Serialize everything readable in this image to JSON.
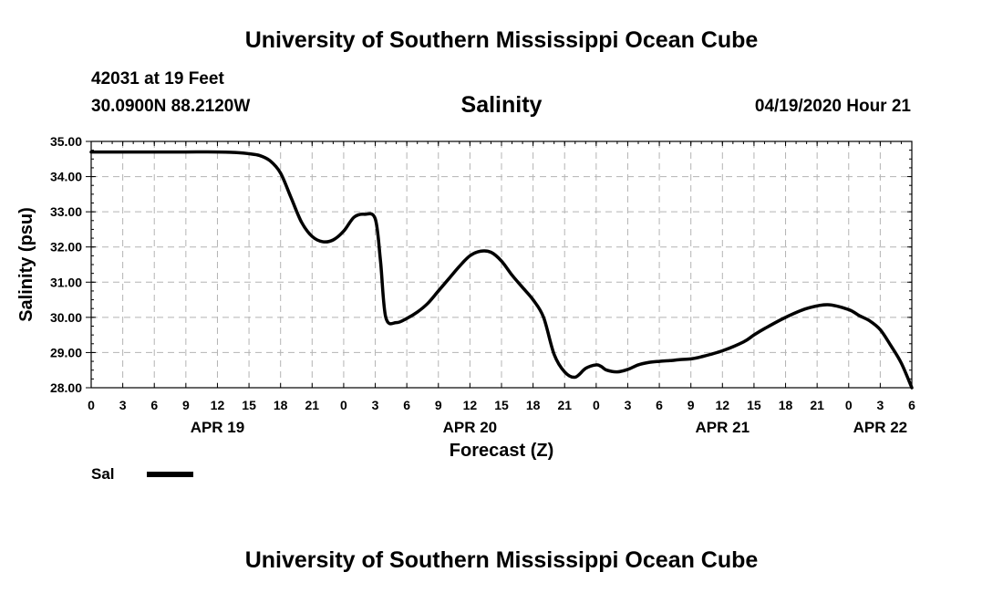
{
  "header": {
    "title": "University of Southern Mississippi Ocean Cube",
    "station": "42031 at 19 Feet",
    "coords": "30.0900N 88.2120W",
    "subtitle": "Salinity",
    "datetime": "04/19/2020 Hour 21"
  },
  "footer": {
    "title": "University of Southern Mississippi Ocean Cube"
  },
  "chart_data": {
    "type": "line",
    "title": "Salinity",
    "xlabel": "Forecast (Z)",
    "ylabel": "Salinity (psu)",
    "xlim": [
      0,
      78
    ],
    "ylim": [
      28.0,
      35.0
    ],
    "grid": true,
    "x_ticks": [
      0,
      3,
      6,
      9,
      12,
      15,
      18,
      21,
      24,
      27,
      30,
      33,
      36,
      39,
      42,
      45,
      48,
      51,
      54,
      57,
      60,
      63,
      66,
      69,
      72,
      75,
      78
    ],
    "x_tick_labels": [
      "0",
      "3",
      "6",
      "9",
      "12",
      "15",
      "18",
      "21",
      "0",
      "3",
      "6",
      "9",
      "12",
      "15",
      "18",
      "21",
      "0",
      "3",
      "6",
      "9",
      "12",
      "15",
      "18",
      "21",
      "0",
      "3",
      "6"
    ],
    "y_ticks": [
      28.0,
      29.0,
      30.0,
      31.0,
      32.0,
      33.0,
      34.0,
      35.0
    ],
    "y_tick_labels": [
      "28.00",
      "29.00",
      "30.00",
      "31.00",
      "32.00",
      "33.00",
      "34.00",
      "35.00"
    ],
    "day_labels": [
      {
        "x": 12,
        "label": "APR 19"
      },
      {
        "x": 36,
        "label": "APR 20"
      },
      {
        "x": 60,
        "label": "APR 21"
      },
      {
        "x": 75,
        "label": "APR 22"
      }
    ],
    "legend": {
      "position": "bottom-left",
      "label": "Sal"
    },
    "series": [
      {
        "name": "Sal",
        "color": "#000000",
        "x": [
          0,
          3,
          6,
          9,
          12,
          14,
          15,
          16,
          17,
          18,
          19,
          20,
          21,
          22,
          23,
          24,
          25,
          26,
          27,
          27.5,
          28,
          29,
          30,
          31,
          32,
          33,
          34,
          35,
          36,
          37,
          38,
          39,
          40,
          41,
          42,
          43,
          44,
          45,
          46,
          47,
          48,
          48.5,
          49,
          50,
          51,
          52,
          53,
          54,
          55,
          56,
          57,
          58,
          60,
          62,
          63,
          64,
          66,
          68,
          70,
          72,
          73,
          74,
          75,
          76,
          77,
          78
        ],
        "y": [
          34.7,
          34.7,
          34.7,
          34.7,
          34.7,
          34.68,
          34.65,
          34.6,
          34.45,
          34.1,
          33.4,
          32.7,
          32.3,
          32.15,
          32.2,
          32.45,
          32.85,
          32.93,
          32.8,
          31.6,
          30.0,
          29.85,
          29.97,
          30.15,
          30.4,
          30.75,
          31.1,
          31.45,
          31.75,
          31.88,
          31.85,
          31.6,
          31.2,
          30.85,
          30.5,
          30.0,
          28.95,
          28.45,
          28.3,
          28.55,
          28.65,
          28.6,
          28.5,
          28.45,
          28.52,
          28.65,
          28.72,
          28.75,
          28.77,
          28.8,
          28.82,
          28.88,
          29.05,
          29.3,
          29.5,
          29.68,
          30.0,
          30.25,
          30.36,
          30.22,
          30.05,
          29.9,
          29.65,
          29.2,
          28.7,
          28.0
        ]
      }
    ]
  }
}
